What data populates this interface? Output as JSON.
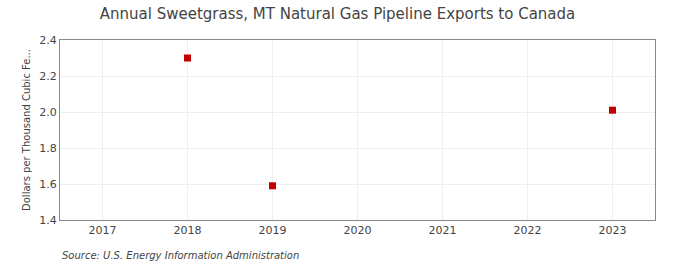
{
  "chart_data": {
    "type": "scatter",
    "title": "Annual Sweetgrass, MT Natural Gas Pipeline Exports to Canada",
    "ylabel": "Dollars per Thousand Cubic Fe...",
    "annotations": [
      "Source: U.S. Energy Information Administration"
    ],
    "x": [
      2018,
      2019,
      2023
    ],
    "values": [
      2.3,
      1.59,
      2.01
    ],
    "color": "#c00000",
    "marker": "square",
    "xlim": [
      2016.5,
      2023.5
    ],
    "xticks": [
      2017,
      2018,
      2019,
      2020,
      2021,
      2022,
      2023
    ],
    "ylim": [
      1.4,
      2.4
    ],
    "yticks": [
      1.4,
      1.6,
      1.8,
      {
        "value": 2.0,
        "label": "2.0"
      },
      2.2,
      2.4
    ],
    "grid": true
  }
}
